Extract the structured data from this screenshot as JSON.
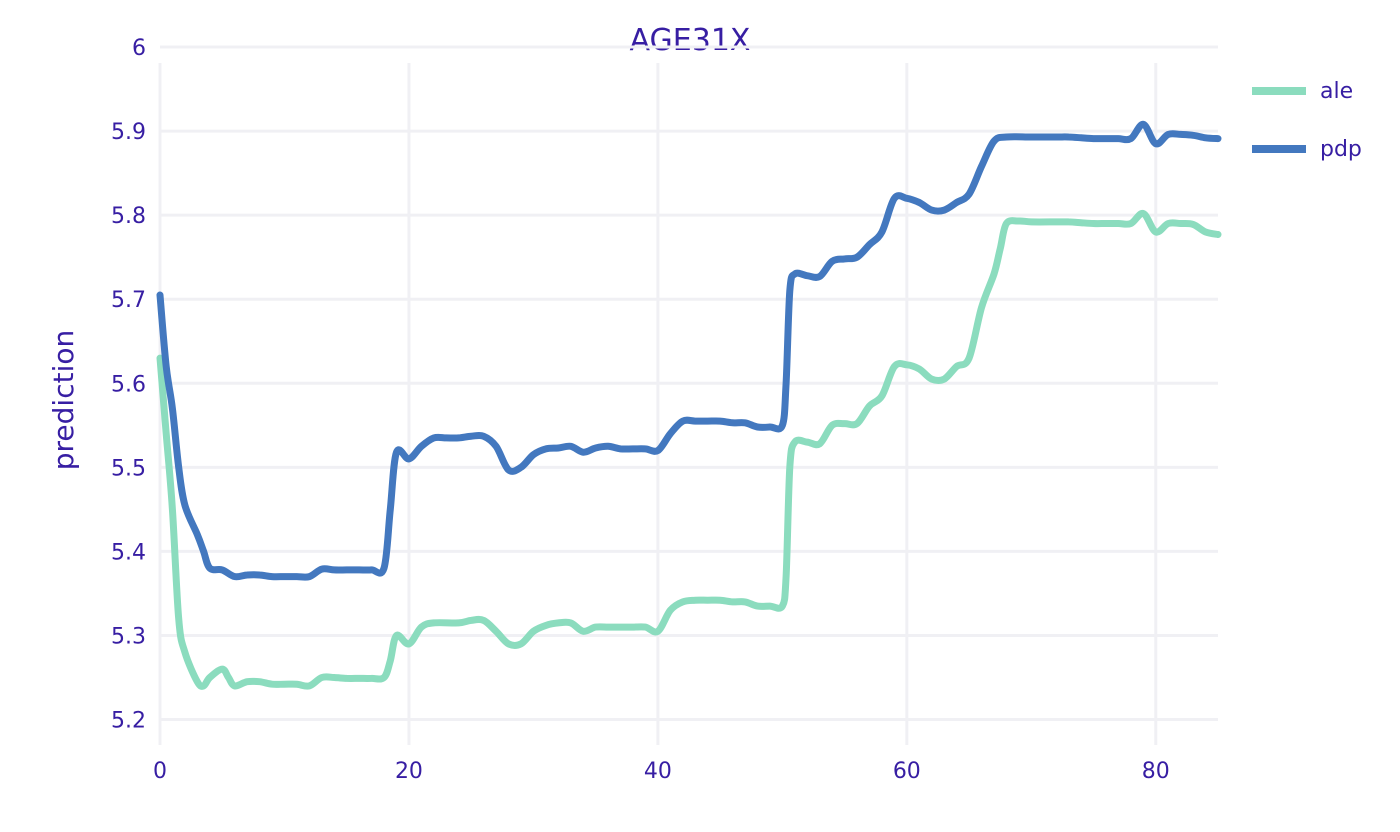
{
  "chart_data": {
    "type": "line",
    "title": "AGE31X",
    "xlabel": "",
    "ylabel": "prediction",
    "xlim": [
      0,
      85
    ],
    "ylim": [
      5.14,
      6.0
    ],
    "xticks": [
      0,
      20,
      40,
      60,
      80
    ],
    "yticks": [
      5.2,
      5.3,
      5.4,
      5.5,
      5.6,
      5.7,
      5.8,
      5.9,
      6
    ],
    "grid": true,
    "legend_position": "top-right",
    "series": [
      {
        "name": "ale",
        "color": "#8bdcbe",
        "points": [
          [
            0,
            5.63
          ],
          [
            0.5,
            5.54
          ],
          [
            1,
            5.45
          ],
          [
            1.5,
            5.32
          ],
          [
            2,
            5.28
          ],
          [
            3,
            5.245
          ],
          [
            3.5,
            5.24
          ],
          [
            4,
            5.25
          ],
          [
            5,
            5.26
          ],
          [
            5.5,
            5.25
          ],
          [
            6,
            5.24
          ],
          [
            7,
            5.245
          ],
          [
            8,
            5.245
          ],
          [
            9,
            5.242
          ],
          [
            10,
            5.242
          ],
          [
            11,
            5.242
          ],
          [
            12,
            5.24
          ],
          [
            13,
            5.25
          ],
          [
            14,
            5.25
          ],
          [
            15,
            5.249
          ],
          [
            16,
            5.249
          ],
          [
            17,
            5.249
          ],
          [
            18,
            5.25
          ],
          [
            18.5,
            5.27
          ],
          [
            19,
            5.3
          ],
          [
            20,
            5.29
          ],
          [
            21,
            5.31
          ],
          [
            22,
            5.315
          ],
          [
            24,
            5.315
          ],
          [
            25,
            5.318
          ],
          [
            26,
            5.318
          ],
          [
            27,
            5.305
          ],
          [
            28,
            5.29
          ],
          [
            29,
            5.29
          ],
          [
            30,
            5.305
          ],
          [
            31,
            5.312
          ],
          [
            32,
            5.315
          ],
          [
            33,
            5.315
          ],
          [
            34,
            5.305
          ],
          [
            35,
            5.31
          ],
          [
            36,
            5.31
          ],
          [
            37,
            5.31
          ],
          [
            38,
            5.31
          ],
          [
            39,
            5.31
          ],
          [
            40,
            5.305
          ],
          [
            41,
            5.33
          ],
          [
            42,
            5.34
          ],
          [
            43,
            5.342
          ],
          [
            44,
            5.342
          ],
          [
            45,
            5.342
          ],
          [
            46,
            5.34
          ],
          [
            47,
            5.34
          ],
          [
            48,
            5.335
          ],
          [
            49,
            5.335
          ],
          [
            50,
            5.335
          ],
          [
            50.3,
            5.37
          ],
          [
            50.6,
            5.5
          ],
          [
            51,
            5.53
          ],
          [
            52,
            5.53
          ],
          [
            53,
            5.528
          ],
          [
            54,
            5.55
          ],
          [
            55,
            5.552
          ],
          [
            56,
            5.552
          ],
          [
            57,
            5.573
          ],
          [
            58,
            5.585
          ],
          [
            59,
            5.62
          ],
          [
            60,
            5.622
          ],
          [
            61,
            5.617
          ],
          [
            62,
            5.605
          ],
          [
            63,
            5.605
          ],
          [
            64,
            5.62
          ],
          [
            65,
            5.63
          ],
          [
            66,
            5.69
          ],
          [
            67,
            5.73
          ],
          [
            67.5,
            5.76
          ],
          [
            68,
            5.79
          ],
          [
            69,
            5.793
          ],
          [
            70,
            5.792
          ],
          [
            72,
            5.792
          ],
          [
            73,
            5.792
          ],
          [
            74,
            5.791
          ],
          [
            75,
            5.79
          ],
          [
            76,
            5.79
          ],
          [
            77,
            5.79
          ],
          [
            78,
            5.79
          ],
          [
            79,
            5.802
          ],
          [
            80,
            5.78
          ],
          [
            81,
            5.79
          ],
          [
            82,
            5.79
          ],
          [
            83,
            5.789
          ],
          [
            84,
            5.78
          ],
          [
            85,
            5.777
          ]
        ]
      },
      {
        "name": "pdp",
        "color": "#4378bf",
        "points": [
          [
            0,
            5.705
          ],
          [
            0.5,
            5.62
          ],
          [
            1,
            5.57
          ],
          [
            1.5,
            5.5
          ],
          [
            2,
            5.455
          ],
          [
            3,
            5.42
          ],
          [
            3.5,
            5.4
          ],
          [
            4,
            5.38
          ],
          [
            5,
            5.378
          ],
          [
            6,
            5.37
          ],
          [
            7,
            5.372
          ],
          [
            8,
            5.372
          ],
          [
            9,
            5.37
          ],
          [
            10,
            5.37
          ],
          [
            11,
            5.37
          ],
          [
            12,
            5.37
          ],
          [
            13,
            5.379
          ],
          [
            14,
            5.378
          ],
          [
            15,
            5.378
          ],
          [
            16,
            5.378
          ],
          [
            17,
            5.378
          ],
          [
            18,
            5.38
          ],
          [
            18.5,
            5.45
          ],
          [
            19,
            5.518
          ],
          [
            20,
            5.51
          ],
          [
            21,
            5.525
          ],
          [
            22,
            5.535
          ],
          [
            23,
            5.535
          ],
          [
            24,
            5.535
          ],
          [
            25,
            5.537
          ],
          [
            26,
            5.537
          ],
          [
            27,
            5.525
          ],
          [
            28,
            5.497
          ],
          [
            29,
            5.5
          ],
          [
            30,
            5.515
          ],
          [
            31,
            5.522
          ],
          [
            32,
            5.523
          ],
          [
            33,
            5.525
          ],
          [
            34,
            5.518
          ],
          [
            35,
            5.523
          ],
          [
            36,
            5.525
          ],
          [
            37,
            5.522
          ],
          [
            38,
            5.522
          ],
          [
            39,
            5.522
          ],
          [
            40,
            5.52
          ],
          [
            41,
            5.54
          ],
          [
            42,
            5.555
          ],
          [
            43,
            5.555
          ],
          [
            44,
            5.555
          ],
          [
            45,
            5.555
          ],
          [
            46,
            5.553
          ],
          [
            47,
            5.553
          ],
          [
            48,
            5.548
          ],
          [
            49,
            5.548
          ],
          [
            50,
            5.55
          ],
          [
            50.3,
            5.6
          ],
          [
            50.6,
            5.71
          ],
          [
            51,
            5.73
          ],
          [
            52,
            5.728
          ],
          [
            53,
            5.727
          ],
          [
            54,
            5.745
          ],
          [
            55,
            5.748
          ],
          [
            56,
            5.75
          ],
          [
            57,
            5.765
          ],
          [
            58,
            5.78
          ],
          [
            59,
            5.82
          ],
          [
            60,
            5.82
          ],
          [
            61,
            5.815
          ],
          [
            62,
            5.806
          ],
          [
            63,
            5.806
          ],
          [
            64,
            5.815
          ],
          [
            65,
            5.825
          ],
          [
            66,
            5.858
          ],
          [
            67,
            5.888
          ],
          [
            68,
            5.893
          ],
          [
            70,
            5.893
          ],
          [
            72,
            5.893
          ],
          [
            73,
            5.893
          ],
          [
            74,
            5.892
          ],
          [
            75,
            5.891
          ],
          [
            76,
            5.891
          ],
          [
            77,
            5.891
          ],
          [
            78,
            5.891
          ],
          [
            79,
            5.908
          ],
          [
            80,
            5.885
          ],
          [
            81,
            5.896
          ],
          [
            82,
            5.896
          ],
          [
            83,
            5.895
          ],
          [
            84,
            5.892
          ],
          [
            85,
            5.891
          ]
        ]
      }
    ]
  }
}
